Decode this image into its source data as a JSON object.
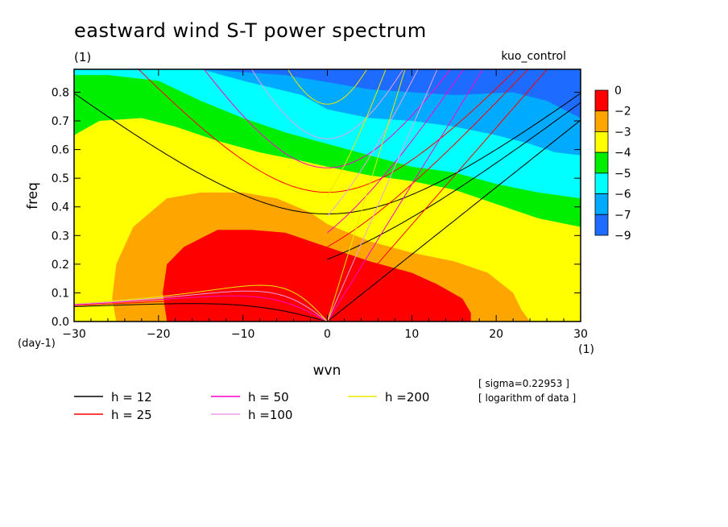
{
  "chart_data": {
    "type": "heatmap",
    "title": "eastward wind S-T power spectrum",
    "subtitle": "(1)",
    "run_label": "kuo_control",
    "xlabel": "wvn",
    "ylabel": "freq",
    "x_unit_label": "(1)",
    "y_unit_label": "(day-1)",
    "xlim": [
      -30,
      30
    ],
    "ylim": [
      0,
      0.88
    ],
    "x_ticks": [
      -30,
      -20,
      -10,
      0,
      10,
      20,
      30
    ],
    "x_tick_labels": [
      "−30",
      "−20",
      "−10",
      "0",
      "10",
      "20",
      "30"
    ],
    "y_ticks": [
      0,
      0.1,
      0.2,
      0.3,
      0.4,
      0.5,
      0.6,
      0.7,
      0.8
    ],
    "y_tick_labels": [
      "0.0",
      "0.1",
      "0.2",
      "0.3",
      "0.4",
      "0.5",
      "0.6",
      "0.7",
      "0.8"
    ],
    "colorbar": {
      "labels": [
        "0",
        "−2",
        "−3",
        "−4",
        "−5",
        "−6",
        "−7",
        "−9"
      ],
      "colors": [
        "#ff0000",
        "#ffa500",
        "#ffff00",
        "#00ee00",
        "#00ffff",
        "#00aaff",
        "#1e6cff"
      ]
    },
    "contour_levels": [
      -2,
      -3,
      -4,
      -5,
      -6,
      -7
    ],
    "notes": [
      "[ sigma=0.22953 ]",
      "[ logarithm of data ]"
    ],
    "dispersion_curves": [
      {
        "label": "h = 12",
        "equivalent_depth": 12,
        "color": "#000000"
      },
      {
        "label": "h = 25",
        "equivalent_depth": 25,
        "color": "#ff0000"
      },
      {
        "label": "h = 50",
        "equivalent_depth": 50,
        "color": "#ff00cc"
      },
      {
        "label": "h =100",
        "equivalent_depth": 100,
        "color": "#e8a0e8"
      },
      {
        "label": "h =200",
        "equivalent_depth": 200,
        "color": "#e8e800"
      }
    ]
  }
}
